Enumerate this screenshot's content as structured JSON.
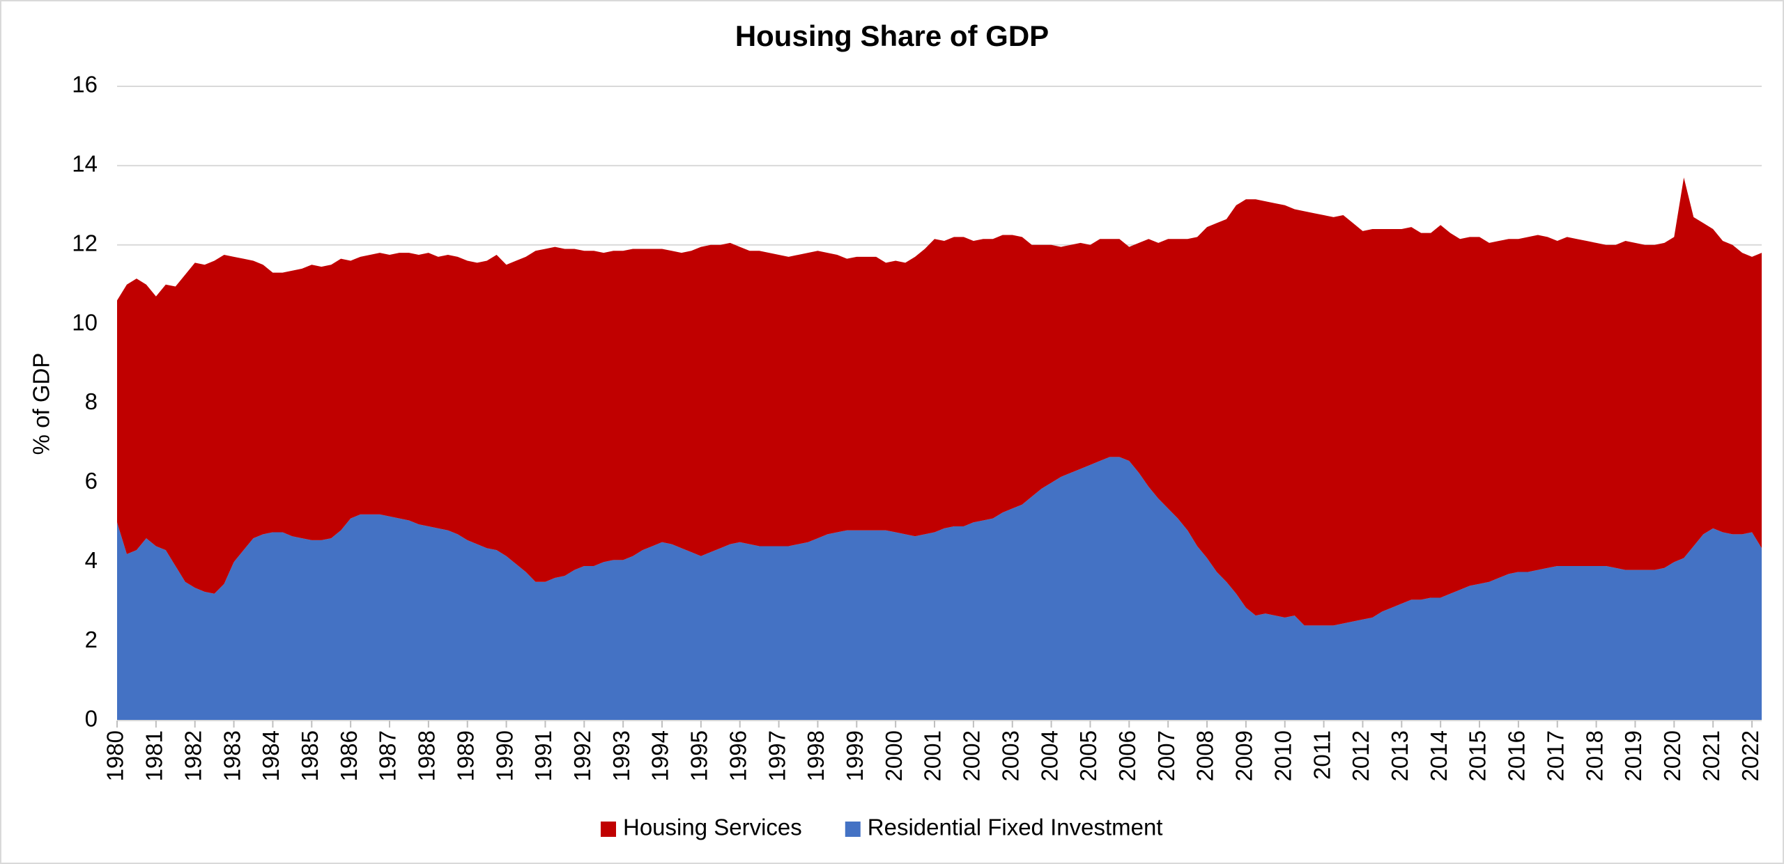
{
  "chart_data": {
    "type": "stacked_area",
    "title": "Housing Share of GDP",
    "ylabel": "% of GDP",
    "categories": [
      "1980",
      null,
      null,
      null,
      "1981",
      null,
      null,
      null,
      "1982",
      null,
      null,
      null,
      "1983",
      null,
      null,
      null,
      "1984",
      null,
      null,
      null,
      "1985",
      null,
      null,
      null,
      "1986",
      null,
      null,
      null,
      "1987",
      null,
      null,
      null,
      "1988",
      null,
      null,
      null,
      "1989",
      null,
      null,
      null,
      "1990",
      null,
      null,
      null,
      "1991",
      null,
      null,
      null,
      "1992",
      null,
      null,
      null,
      "1993",
      null,
      null,
      null,
      "1994",
      null,
      null,
      null,
      "1995",
      null,
      null,
      null,
      "1996",
      null,
      null,
      null,
      "1997",
      null,
      null,
      null,
      "1998",
      null,
      null,
      null,
      "1999",
      null,
      null,
      null,
      "2000",
      null,
      null,
      null,
      "2001",
      null,
      null,
      null,
      "2002",
      null,
      null,
      null,
      "2003",
      null,
      null,
      null,
      "2004",
      null,
      null,
      null,
      "2005",
      null,
      null,
      null,
      "2006",
      null,
      null,
      null,
      "2007",
      null,
      null,
      null,
      "2008",
      null,
      null,
      null,
      "2009",
      null,
      null,
      null,
      "2010",
      null,
      null,
      null,
      "2011",
      null,
      null,
      null,
      "2012",
      null,
      null,
      null,
      "2013",
      null,
      null,
      null,
      "2014",
      null,
      null,
      null,
      "2015",
      null,
      null,
      null,
      "2016",
      null,
      null,
      null,
      "2017",
      null,
      null,
      null,
      "2018",
      null,
      null,
      null,
      "2019",
      null,
      null,
      null,
      "2020",
      null,
      null,
      null,
      "2021",
      null,
      null,
      null,
      "2022",
      null
    ],
    "series": [
      {
        "name": "Housing Services",
        "color": "#c00000",
        "values": [
          5.6,
          6.8,
          6.85,
          6.4,
          6.3,
          6.7,
          7.05,
          7.75,
          8.2,
          8.25,
          8.4,
          8.3,
          7.7,
          7.35,
          7.0,
          6.8,
          6.55,
          6.55,
          6.7,
          6.8,
          6.95,
          6.9,
          6.9,
          6.85,
          6.5,
          6.5,
          6.55,
          6.6,
          6.6,
          6.7,
          6.75,
          6.8,
          6.9,
          6.85,
          6.95,
          7.0,
          7.05,
          7.1,
          7.25,
          7.45,
          7.35,
          7.65,
          7.95,
          8.35,
          8.4,
          8.35,
          8.25,
          8.1,
          7.95,
          7.95,
          7.8,
          7.8,
          7.8,
          7.75,
          7.6,
          7.5,
          7.4,
          7.4,
          7.45,
          7.6,
          7.8,
          7.75,
          7.65,
          7.6,
          7.45,
          7.4,
          7.45,
          7.4,
          7.35,
          7.3,
          7.3,
          7.3,
          7.25,
          7.1,
          7.0,
          6.85,
          6.9,
          6.9,
          6.9,
          6.75,
          6.85,
          6.85,
          7.05,
          7.2,
          7.4,
          7.25,
          7.3,
          7.3,
          7.1,
          7.1,
          7.05,
          7.0,
          6.9,
          6.75,
          6.35,
          6.15,
          6.0,
          5.8,
          5.75,
          5.7,
          5.55,
          5.6,
          5.5,
          5.5,
          5.4,
          5.8,
          6.25,
          6.45,
          6.8,
          7.05,
          7.35,
          7.8,
          8.35,
          8.8,
          9.15,
          9.8,
          10.3,
          10.5,
          10.4,
          10.4,
          10.4,
          10.25,
          10.45,
          10.4,
          10.35,
          10.3,
          10.3,
          10.05,
          9.8,
          9.8,
          9.65,
          9.55,
          9.45,
          9.4,
          9.25,
          9.2,
          9.4,
          9.1,
          8.85,
          8.8,
          8.75,
          8.55,
          8.5,
          8.45,
          8.4,
          8.45,
          8.45,
          8.35,
          8.2,
          8.3,
          8.25,
          8.2,
          8.15,
          8.1,
          8.15,
          8.3,
          8.25,
          8.2,
          8.2,
          8.2,
          8.2,
          9.6,
          8.3,
          7.85,
          7.55,
          7.35,
          7.3,
          7.1,
          6.95,
          7.45
        ]
      },
      {
        "name": "Residential Fixed Investment",
        "color": "#4472c4",
        "values": [
          5.0,
          4.2,
          4.3,
          4.6,
          4.4,
          4.3,
          3.9,
          3.5,
          3.35,
          3.25,
          3.2,
          3.45,
          4.0,
          4.3,
          4.6,
          4.7,
          4.75,
          4.75,
          4.65,
          4.6,
          4.55,
          4.55,
          4.6,
          4.8,
          5.1,
          5.2,
          5.2,
          5.2,
          5.15,
          5.1,
          5.05,
          4.95,
          4.9,
          4.85,
          4.8,
          4.7,
          4.55,
          4.45,
          4.35,
          4.3,
          4.15,
          3.95,
          3.75,
          3.5,
          3.5,
          3.6,
          3.65,
          3.8,
          3.9,
          3.9,
          4.0,
          4.05,
          4.05,
          4.15,
          4.3,
          4.4,
          4.5,
          4.45,
          4.35,
          4.25,
          4.15,
          4.25,
          4.35,
          4.45,
          4.5,
          4.45,
          4.4,
          4.4,
          4.4,
          4.4,
          4.45,
          4.5,
          4.6,
          4.7,
          4.75,
          4.8,
          4.8,
          4.8,
          4.8,
          4.8,
          4.75,
          4.7,
          4.65,
          4.7,
          4.75,
          4.85,
          4.9,
          4.9,
          5.0,
          5.05,
          5.1,
          5.25,
          5.35,
          5.45,
          5.65,
          5.85,
          6.0,
          6.15,
          6.25,
          6.35,
          6.45,
          6.55,
          6.65,
          6.65,
          6.55,
          6.25,
          5.9,
          5.6,
          5.35,
          5.1,
          4.8,
          4.4,
          4.1,
          3.75,
          3.5,
          3.2,
          2.85,
          2.65,
          2.7,
          2.65,
          2.6,
          2.65,
          2.4,
          2.4,
          2.4,
          2.4,
          2.45,
          2.5,
          2.55,
          2.6,
          2.75,
          2.85,
          2.95,
          3.05,
          3.05,
          3.1,
          3.1,
          3.2,
          3.3,
          3.4,
          3.45,
          3.5,
          3.6,
          3.7,
          3.75,
          3.75,
          3.8,
          3.85,
          3.9,
          3.9,
          3.9,
          3.9,
          3.9,
          3.9,
          3.85,
          3.8,
          3.8,
          3.8,
          3.8,
          3.85,
          4.0,
          4.1,
          4.4,
          4.7,
          4.85,
          4.75,
          4.7,
          4.7,
          4.75,
          4.35
        ]
      }
    ],
    "ylim": [
      0,
      16
    ],
    "yticks": [
      0,
      2,
      4,
      6,
      8,
      10,
      12,
      14,
      16
    ],
    "grid": true,
    "legend": "bottom"
  }
}
